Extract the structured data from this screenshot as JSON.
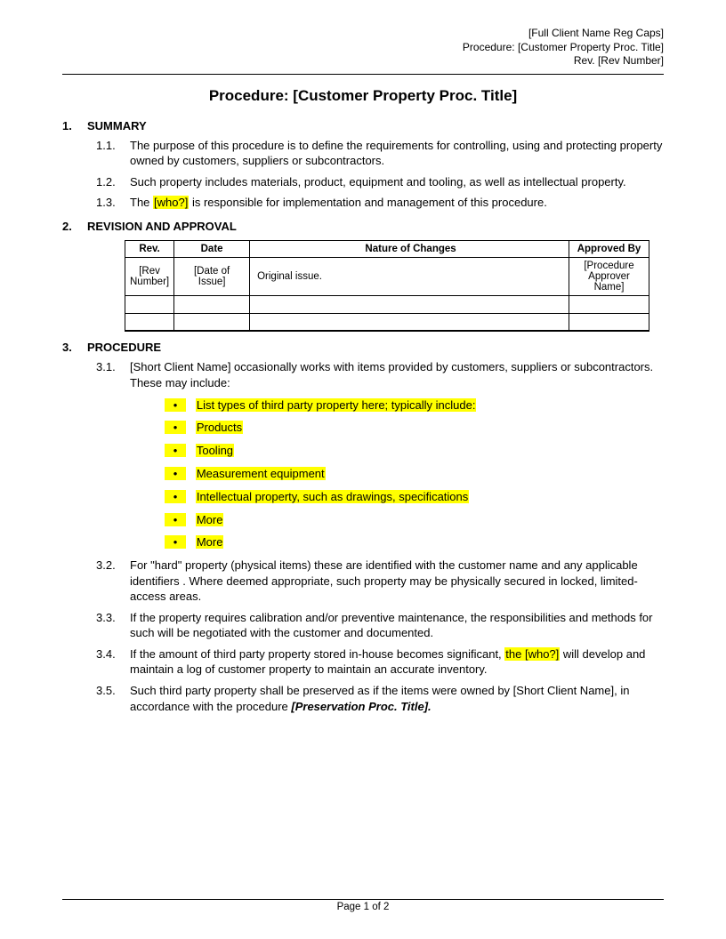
{
  "header": {
    "line1": "[Full Client Name Reg Caps]",
    "line2": "Procedure: [Customer Property Proc. Title]",
    "line3": "Rev. [Rev Number]"
  },
  "title": "Procedure: [Customer Property Proc. Title]",
  "sections": {
    "s1": {
      "num": "1.",
      "label": "SUMMARY"
    },
    "s2": {
      "num": "2.",
      "label": "REVISION AND APPROVAL"
    },
    "s3": {
      "num": "3.",
      "label": "PROCEDURE"
    }
  },
  "summary": {
    "i1": {
      "num": "1.1.",
      "text": "The purpose of this procedure is to define the requirements for controlling, using and protecting property owned by customers, suppliers or subcontractors."
    },
    "i2": {
      "num": "1.2.",
      "text": "Such property includes materials, product, equipment and tooling, as well as intellectual property."
    },
    "i3": {
      "num": "1.3.",
      "pre": "The ",
      "hl": "[who?]",
      "post": " is responsible for implementation and management of this procedure."
    }
  },
  "rev_table": {
    "headers": {
      "rev": "Rev.",
      "date": "Date",
      "nature": "Nature of Changes",
      "approved": "Approved By"
    },
    "row1": {
      "rev": "[Rev Number]",
      "date": "[Date of Issue]",
      "nature": "Original issue.",
      "approved": "[Procedure Approver Name]"
    }
  },
  "procedure": {
    "i1": {
      "num": "3.1.",
      "text": "[Short Client Name] occasionally works with items provided by customers, suppliers or subcontractors. These may include:"
    },
    "bullets": [
      "List types of third party property here; typically include:",
      "Products",
      "Tooling",
      "Measurement equipment",
      "Intellectual property, such as drawings, specifications",
      "More",
      "More"
    ],
    "i2": {
      "num": "3.2.",
      "text": "For \"hard\" property (physical items) these  are identified with the customer name and any applicable identifiers . Where deemed appropriate, such property may be physically secured in locked, limited-access areas."
    },
    "i3": {
      "num": "3.3.",
      "text": "If the property requires calibration and/or preventive maintenance, the responsibilities and methods for such will be negotiated with the customer and documented."
    },
    "i4": {
      "num": "3.4.",
      "pre": "If the amount of third party property stored in-house becomes significant, ",
      "hl": "the [who?]",
      "post": " will develop and maintain a log of customer property to maintain an accurate inventory."
    },
    "i5": {
      "num": "3.5.",
      "pre": "Such third party property shall be preserved as if the items were owned by [Short Client Name], in accordance with the procedure ",
      "bold": "[Preservation Proc. Title].",
      "post": ""
    }
  },
  "footer": {
    "text": "Page 1 of 2"
  },
  "bullet_glyph": "•",
  "highlight_color": "#ffff00"
}
